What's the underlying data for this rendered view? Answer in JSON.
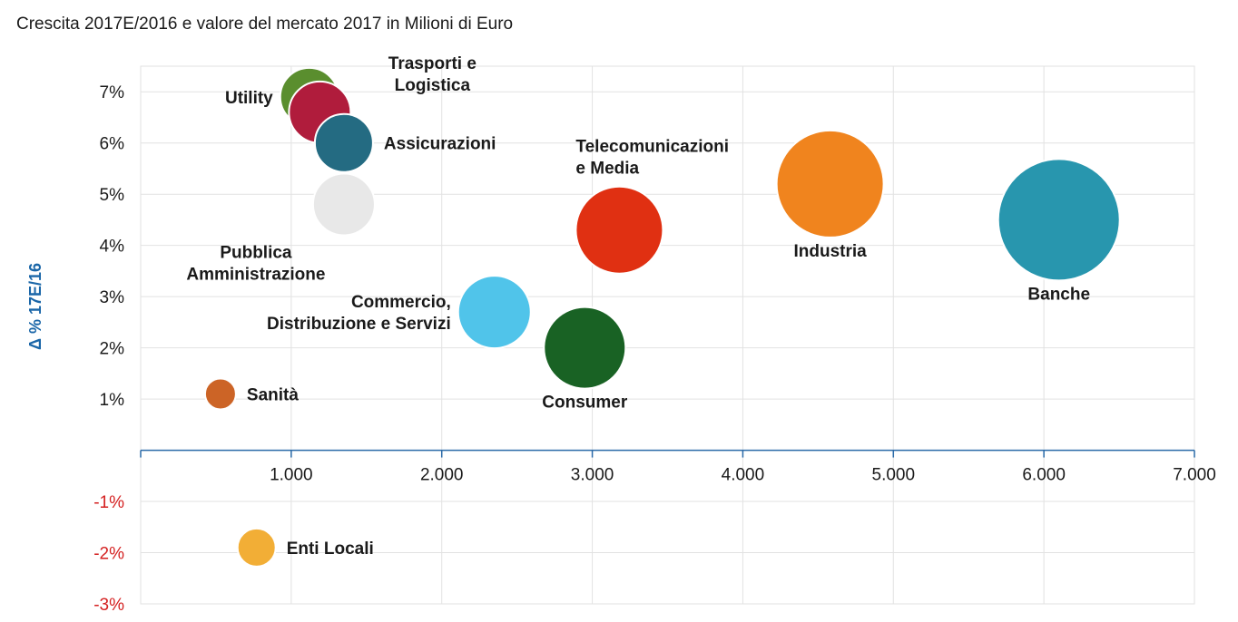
{
  "chart_data": {
    "type": "scatter",
    "title": "Crescita 2017E/2016 e valore del mercato 2017 in Milioni di Euro",
    "xlabel": "",
    "ylabel": "Δ % 17E/16",
    "xlim": [
      0,
      7000
    ],
    "ylim": [
      -3,
      7.5
    ],
    "x_ticks": [
      "1.000",
      "2.000",
      "3.000",
      "4.000",
      "5.000",
      "6.000",
      "7.000"
    ],
    "y_ticks_positive": [
      "1%",
      "2%",
      "3%",
      "4%",
      "5%",
      "6%",
      "7%"
    ],
    "y_ticks_negative": [
      "-1%",
      "-2%",
      "-3%"
    ],
    "colors": {
      "axis": "#2a6aa8",
      "negative_tick": "#d42020",
      "ylabel": "#1a66a8",
      "grid": "#e2e2e2"
    },
    "points": [
      {
        "name": "Utility",
        "label": [
          "Utility"
        ],
        "x": 1120,
        "y": 6.9,
        "size": 32,
        "color": "#5a8e2e",
        "label_pos": "left"
      },
      {
        "name": "Trasporti e Logistica",
        "label": [
          "Trasporti e",
          "Logistica"
        ],
        "x": 1190,
        "y": 6.6,
        "size": 34,
        "color": "#b01c3c",
        "label_pos": "right-up"
      },
      {
        "name": "Assicurazioni",
        "label": [
          "Assicurazioni"
        ],
        "x": 1350,
        "y": 6.0,
        "size": 32,
        "color": "#246b82",
        "label_pos": "right"
      },
      {
        "name": "Pubblica Amministrazione",
        "label": [
          "Pubblica",
          "Amministrazione"
        ],
        "x": 1350,
        "y": 4.8,
        "size": 34,
        "color": "#e8e8e8",
        "label_pos": "below-left"
      },
      {
        "name": "Telecomunicazioni e Media",
        "label": [
          "Telecomunicazioni",
          "e Media"
        ],
        "x": 3180,
        "y": 4.3,
        "size": 48,
        "color": "#e03012",
        "label_pos": "above"
      },
      {
        "name": "Industria",
        "label": [
          "Industria"
        ],
        "x": 4580,
        "y": 5.2,
        "size": 59,
        "color": "#f0841e",
        "label_pos": "below"
      },
      {
        "name": "Banche",
        "label": [
          "Banche"
        ],
        "x": 6100,
        "y": 4.5,
        "size": 67,
        "color": "#2896ae",
        "label_pos": "below"
      },
      {
        "name": "Commercio, Distribuzione e Servizi",
        "label": [
          "Commercio,",
          "Distribuzione e Servizi"
        ],
        "x": 2350,
        "y": 2.7,
        "size": 40,
        "color": "#50c4ea",
        "label_pos": "left"
      },
      {
        "name": "Consumer",
        "label": [
          "Consumer"
        ],
        "x": 2950,
        "y": 2.0,
        "size": 45,
        "color": "#196224",
        "label_pos": "below"
      },
      {
        "name": "Sanità",
        "label": [
          "Sanità"
        ],
        "x": 530,
        "y": 1.1,
        "size": 17,
        "color": "#cc6426",
        "label_pos": "right"
      },
      {
        "name": "Enti Locali",
        "label": [
          "Enti Locali"
        ],
        "x": 770,
        "y": -1.9,
        "size": 21,
        "color": "#f2ae36",
        "label_pos": "right"
      }
    ]
  }
}
